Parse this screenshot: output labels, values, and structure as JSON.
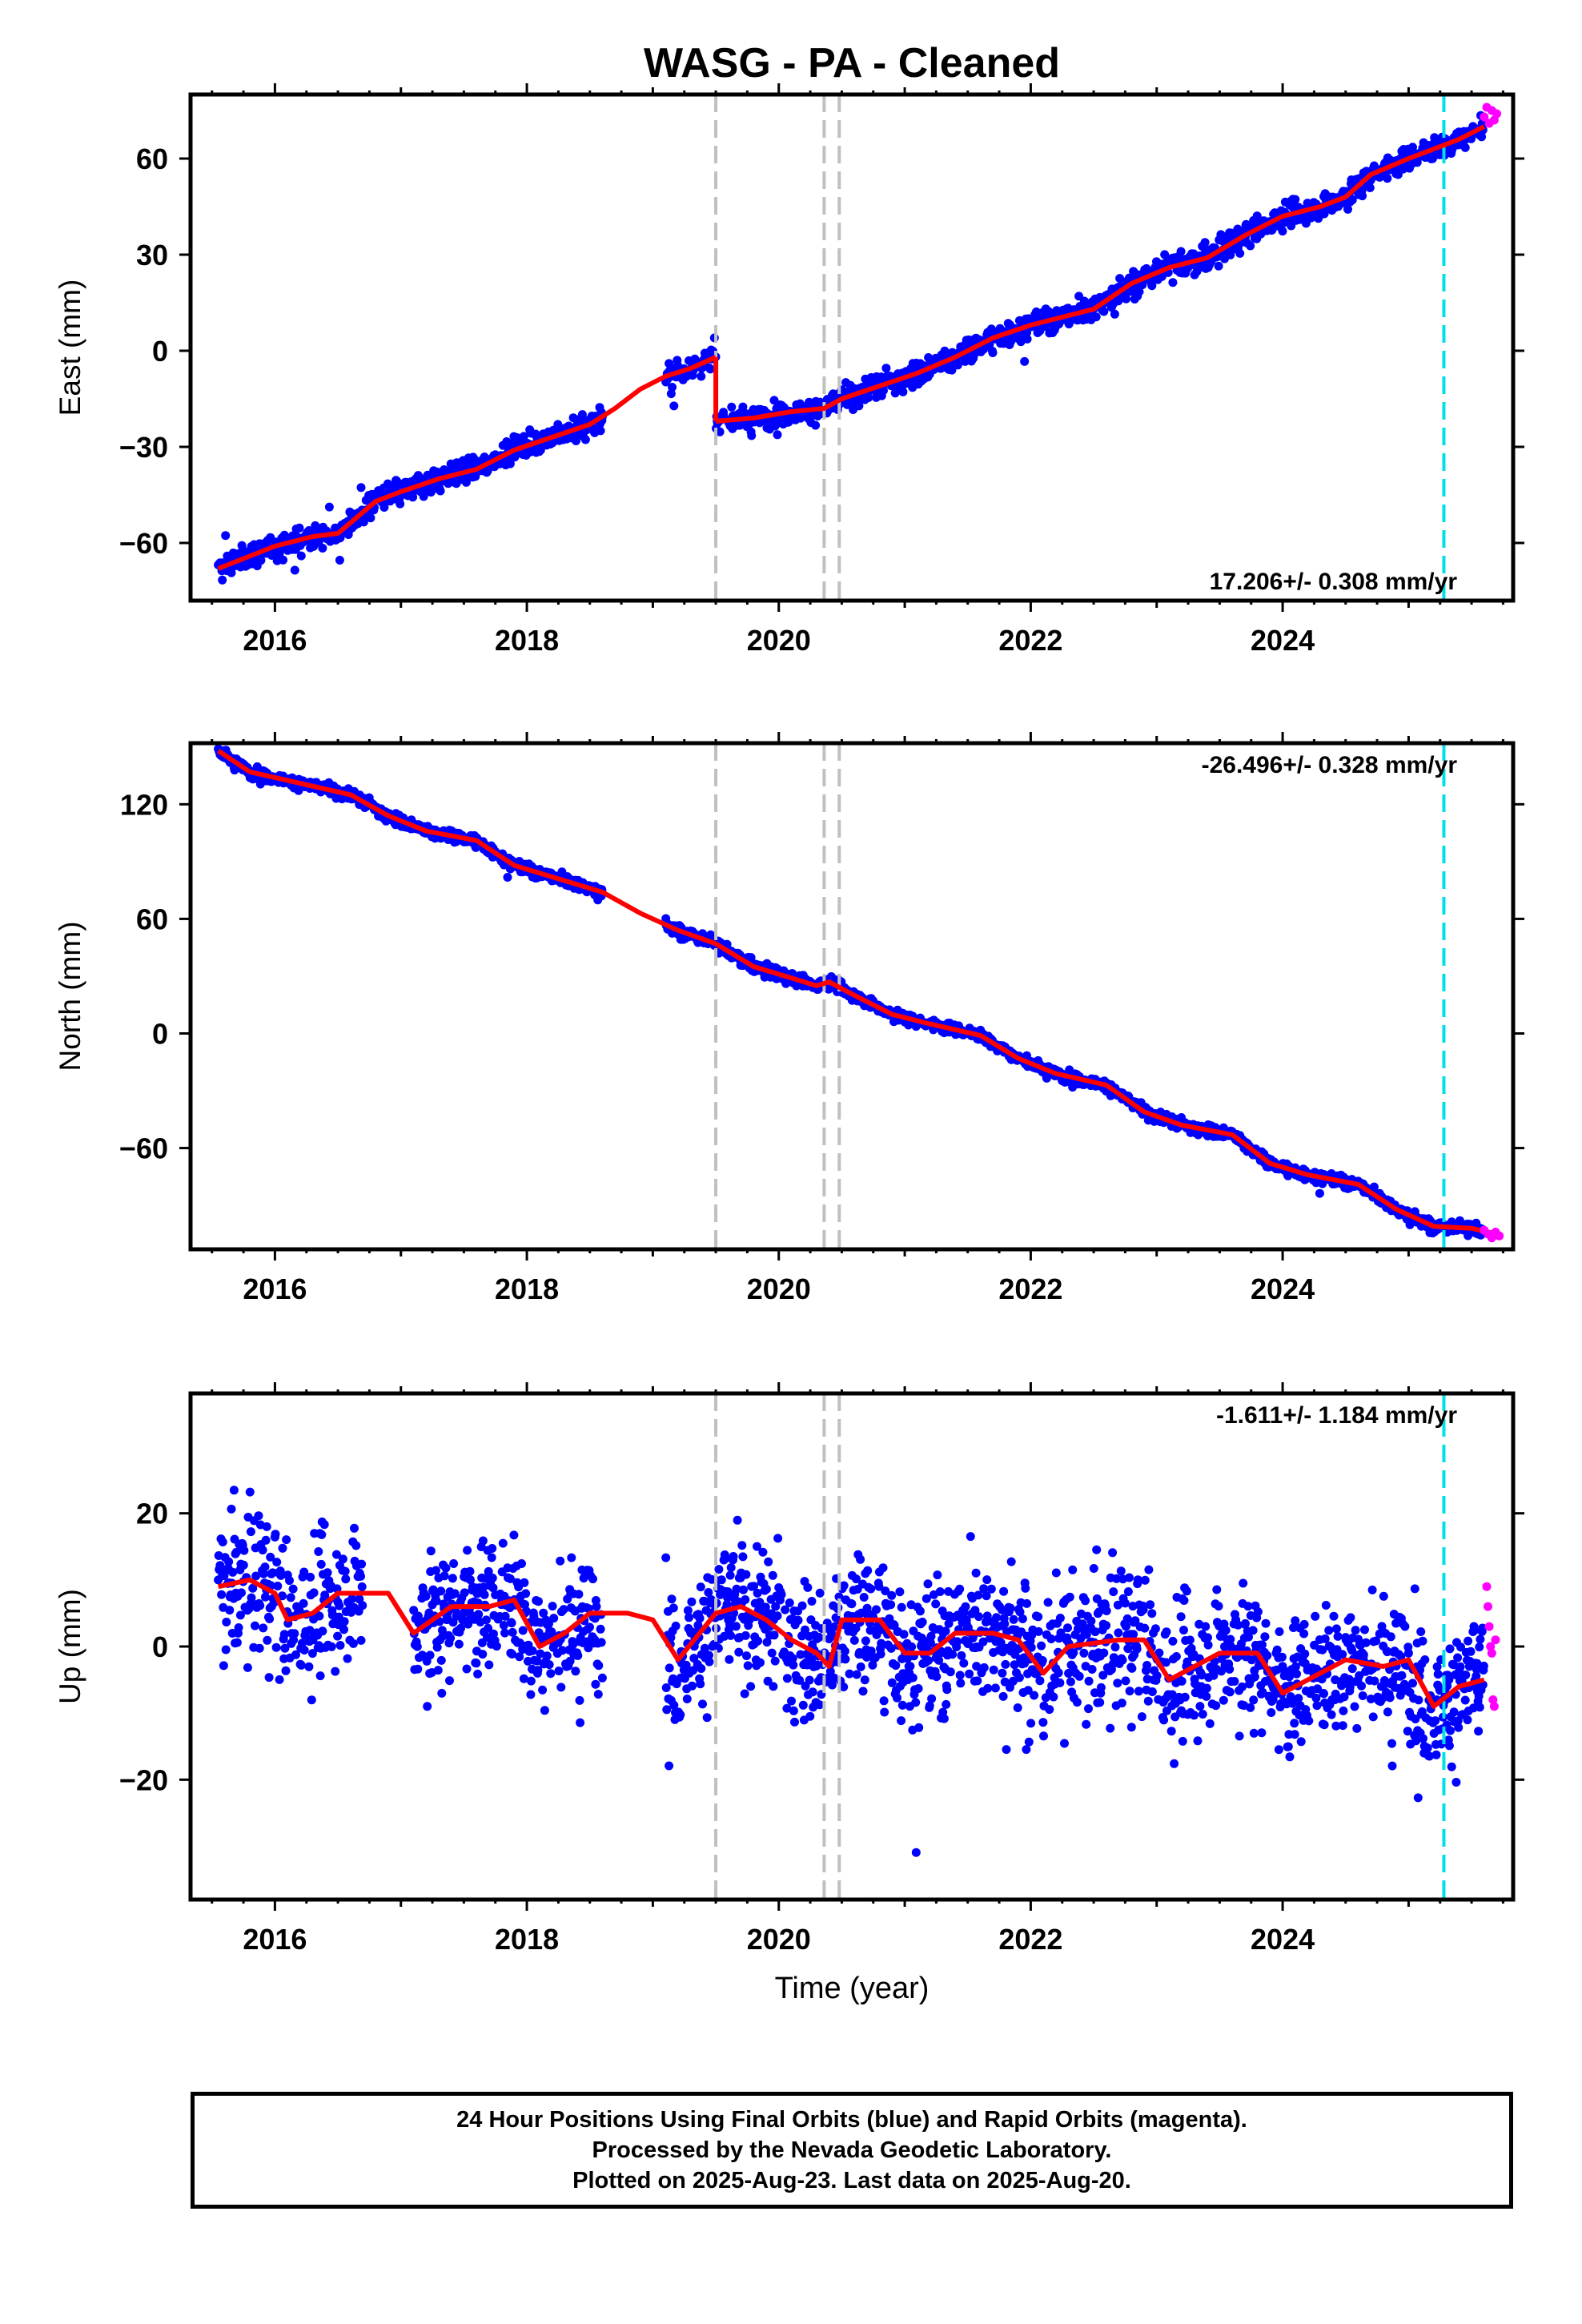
{
  "chart_data": {
    "type": "scatter",
    "title": "WASG  - PA - Cleaned",
    "xlabel": "Time (year)",
    "xlim": [
      2015.33,
      2025.83
    ],
    "x_ticks": [
      2016,
      2018,
      2020,
      2022,
      2024
    ],
    "x_tick_labels": [
      "2016",
      "2018",
      "2020",
      "2022",
      "2024"
    ],
    "vertical_lines": {
      "gray_dashed": [
        2019.5,
        2020.36,
        2020.48
      ],
      "cyan_dashed": [
        2025.28
      ]
    },
    "colors": {
      "final_orbits": "#0000ff",
      "rapid_orbits": "#ff00ff",
      "model": "#ff0000",
      "gray_lines": "#c0c0c0",
      "cyan_line": "#00e0e8"
    },
    "panels": [
      {
        "name": "east",
        "ylabel": "East (mm)",
        "ylim": [
          -78,
          80
        ],
        "y_ticks": [
          -60,
          -30,
          0,
          30,
          60
        ],
        "y_tick_labels": [
          "−60",
          "−30",
          "0",
          "30",
          "60"
        ],
        "rate_label": "17.206+/- 0.308 mm/yr",
        "rate_position": "bottom-right",
        "noise_mm": 2.5,
        "gaps": [
          [
            2018.6,
            2019.1
          ]
        ],
        "model_segments": [
          [
            [
              2015.55,
              -68
            ],
            [
              2016.0,
              -61
            ],
            [
              2016.3,
              -58
            ],
            [
              2016.5,
              -57
            ],
            [
              2016.8,
              -47
            ],
            [
              2017.0,
              -44
            ],
            [
              2017.3,
              -40
            ],
            [
              2017.6,
              -37
            ],
            [
              2017.9,
              -31
            ],
            [
              2018.2,
              -27
            ],
            [
              2018.5,
              -23
            ],
            [
              2018.7,
              -18
            ],
            [
              2018.9,
              -12
            ],
            [
              2019.1,
              -8
            ],
            [
              2019.3,
              -5.5
            ],
            [
              2019.5,
              -2
            ]
          ],
          [
            [
              2019.5,
              -22
            ],
            [
              2019.8,
              -21
            ],
            [
              2020.1,
              -19
            ],
            [
              2020.36,
              -18
            ],
            [
              2020.5,
              -15
            ],
            [
              2020.8,
              -11
            ],
            [
              2021.1,
              -7
            ],
            [
              2021.4,
              -2
            ],
            [
              2021.7,
              4
            ],
            [
              2022.0,
              8
            ],
            [
              2022.3,
              11
            ],
            [
              2022.5,
              13
            ],
            [
              2022.8,
              21
            ],
            [
              2023.1,
              26
            ],
            [
              2023.4,
              29
            ],
            [
              2023.7,
              36
            ],
            [
              2024.0,
              42
            ],
            [
              2024.3,
              45
            ],
            [
              2024.5,
              48
            ],
            [
              2024.7,
              55
            ],
            [
              2025.0,
              60
            ],
            [
              2025.2,
              63
            ],
            [
              2025.4,
              66
            ],
            [
              2025.6,
              70
            ]
          ]
        ],
        "rapid_points": [
          [
            2025.6,
            73
          ],
          [
            2025.62,
            76
          ],
          [
            2025.64,
            71
          ],
          [
            2025.66,
            75
          ],
          [
            2025.68,
            72
          ],
          [
            2025.7,
            74
          ]
        ]
      },
      {
        "name": "north",
        "ylabel": "North (mm)",
        "ylim": [
          -113,
          152
        ],
        "y_ticks": [
          -60,
          0,
          60,
          120
        ],
        "y_tick_labels": [
          "−60",
          "0",
          "60",
          "120"
        ],
        "rate_label": "-26.496+/- 0.328 mm/yr",
        "rate_position": "top-right",
        "noise_mm": 2.0,
        "gaps": [
          [
            2018.6,
            2019.1
          ]
        ],
        "model_segments": [
          [
            [
              2015.55,
              148
            ],
            [
              2015.8,
              137
            ],
            [
              2016.2,
              131
            ],
            [
              2016.6,
              125
            ],
            [
              2016.9,
              114
            ],
            [
              2017.2,
              106
            ],
            [
              2017.6,
              101
            ],
            [
              2017.9,
              88
            ],
            [
              2018.3,
              80
            ],
            [
              2018.6,
              74
            ],
            [
              2018.9,
              63
            ],
            [
              2019.2,
              54
            ],
            [
              2019.5,
              47
            ],
            [
              2019.8,
              35
            ],
            [
              2020.1,
              29
            ],
            [
              2020.3,
              25
            ],
            [
              2020.4,
              27
            ],
            [
              2020.6,
              20
            ],
            [
              2020.9,
              10
            ],
            [
              2021.2,
              5
            ],
            [
              2021.6,
              -1
            ],
            [
              2021.9,
              -13
            ],
            [
              2022.2,
              -21
            ],
            [
              2022.6,
              -27
            ],
            [
              2022.9,
              -41
            ],
            [
              2023.2,
              -48
            ],
            [
              2023.6,
              -53
            ],
            [
              2023.9,
              -68
            ],
            [
              2024.2,
              -74
            ],
            [
              2024.6,
              -79
            ],
            [
              2024.9,
              -92
            ],
            [
              2025.2,
              -101
            ],
            [
              2025.5,
              -102
            ],
            [
              2025.7,
              -105
            ]
          ]
        ],
        "rapid_points": [
          [
            2025.6,
            -103
          ],
          [
            2025.63,
            -105
          ],
          [
            2025.66,
            -107
          ],
          [
            2025.69,
            -104
          ],
          [
            2025.72,
            -106
          ]
        ]
      },
      {
        "name": "up",
        "ylabel": "Up (mm)",
        "ylim": [
          -38,
          38
        ],
        "y_ticks": [
          -20,
          0,
          20
        ],
        "y_tick_labels": [
          "−20",
          "0",
          "20"
        ],
        "rate_label": "-1.611+/- 1.184 mm/yr",
        "rate_position": "top-right",
        "noise_mm": 7.0,
        "gaps": [
          [
            2016.7,
            2017.1
          ],
          [
            2018.6,
            2019.1
          ]
        ],
        "model_segments": [
          [
            [
              2015.55,
              9
            ],
            [
              2015.8,
              10
            ],
            [
              2016.0,
              8
            ],
            [
              2016.1,
              4
            ],
            [
              2016.3,
              5
            ],
            [
              2016.5,
              8
            ],
            [
              2016.7,
              8
            ],
            [
              2016.9,
              8
            ],
            [
              2017.1,
              2
            ],
            [
              2017.4,
              6
            ],
            [
              2017.7,
              6
            ],
            [
              2017.9,
              7
            ],
            [
              2018.1,
              0
            ],
            [
              2018.3,
              2
            ],
            [
              2018.5,
              5
            ],
            [
              2018.8,
              5
            ],
            [
              2019.0,
              4
            ],
            [
              2019.2,
              -2
            ],
            [
              2019.5,
              5
            ],
            [
              2019.7,
              6
            ],
            [
              2019.9,
              4
            ],
            [
              2020.1,
              1
            ],
            [
              2020.3,
              -1
            ],
            [
              2020.4,
              -3
            ],
            [
              2020.5,
              4
            ],
            [
              2020.8,
              4
            ],
            [
              2021.0,
              -1
            ],
            [
              2021.2,
              -1
            ],
            [
              2021.4,
              2
            ],
            [
              2021.7,
              2
            ],
            [
              2021.9,
              1
            ],
            [
              2022.1,
              -4
            ],
            [
              2022.3,
              0
            ],
            [
              2022.7,
              1
            ],
            [
              2022.9,
              1
            ],
            [
              2023.1,
              -5
            ],
            [
              2023.3,
              -3
            ],
            [
              2023.5,
              -1
            ],
            [
              2023.8,
              -1
            ],
            [
              2024.0,
              -7
            ],
            [
              2024.2,
              -5
            ],
            [
              2024.5,
              -2
            ],
            [
              2024.8,
              -3
            ],
            [
              2025.0,
              -2
            ],
            [
              2025.2,
              -9
            ],
            [
              2025.4,
              -6
            ],
            [
              2025.6,
              -5
            ]
          ]
        ],
        "rapid_points": [
          [
            2025.62,
            9
          ],
          [
            2025.63,
            6
          ],
          [
            2025.64,
            3
          ],
          [
            2025.65,
            0
          ],
          [
            2025.66,
            -1
          ],
          [
            2025.67,
            -8
          ],
          [
            2025.68,
            -9
          ],
          [
            2025.69,
            1
          ]
        ]
      }
    ]
  },
  "footer": {
    "line1": "24 Hour Positions Using Final Orbits (blue) and Rapid Orbits (magenta).",
    "line2": "Processed by the Nevada Geodetic Laboratory.",
    "line3": "Plotted on 2025-Aug-23. Last data on 2025-Aug-20."
  }
}
